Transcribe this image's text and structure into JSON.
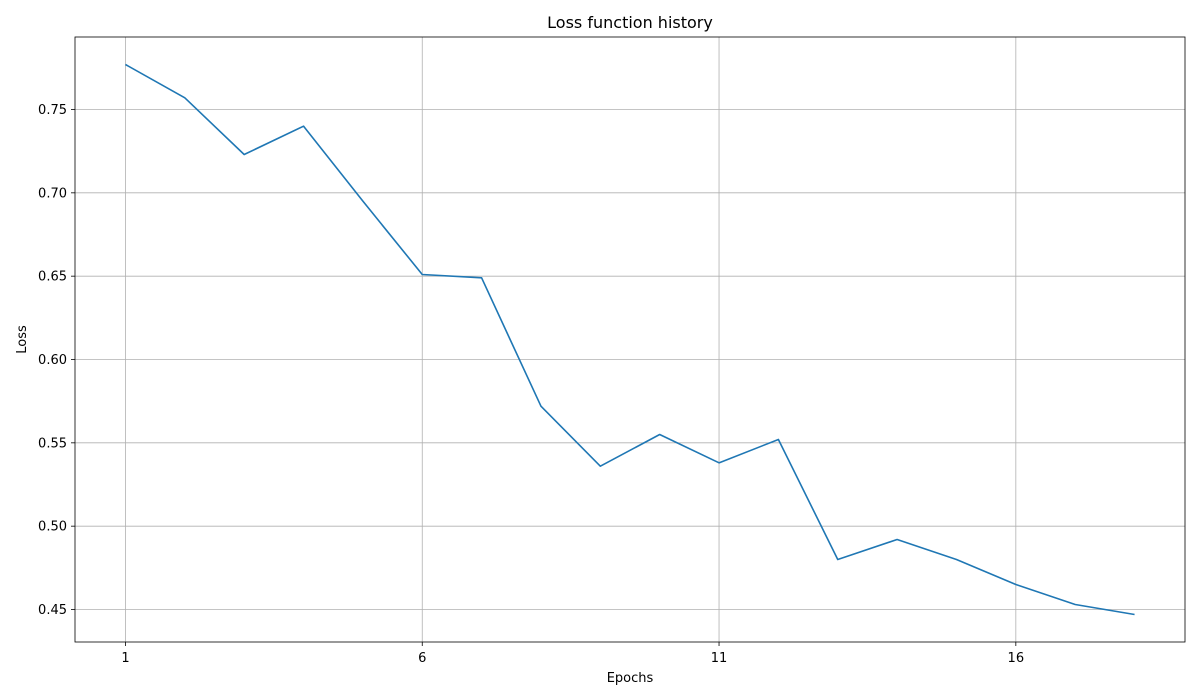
{
  "chart_data": {
    "type": "line",
    "title": "Loss function history",
    "xlabel": "Epochs",
    "ylabel": "Loss",
    "x": [
      1,
      2,
      3,
      4,
      5,
      6,
      7,
      8,
      9,
      10,
      11,
      12,
      13,
      14,
      15,
      16,
      17,
      18
    ],
    "series": [
      {
        "values": [
          0.777,
          0.757,
          0.723,
          0.74,
          0.695,
          0.651,
          0.649,
          0.572,
          0.536,
          0.555,
          0.538,
          0.552,
          0.48,
          0.492,
          0.48,
          0.465,
          0.453,
          0.447
        ],
        "color": "#1f77b4"
      }
    ],
    "xlim": [
      0.15,
      18.85
    ],
    "ylim": [
      0.4305,
      0.7935
    ],
    "x_ticks": [
      1,
      6,
      11,
      16
    ],
    "x_tick_labels": [
      "1",
      "6",
      "11",
      "16"
    ],
    "y_ticks": [
      0.45,
      0.5,
      0.55,
      0.6,
      0.65,
      0.7,
      0.75
    ],
    "y_tick_labels": [
      "0.45",
      "0.50",
      "0.55",
      "0.60",
      "0.65",
      "0.70",
      "0.75"
    ],
    "grid": true,
    "legend": "none"
  }
}
